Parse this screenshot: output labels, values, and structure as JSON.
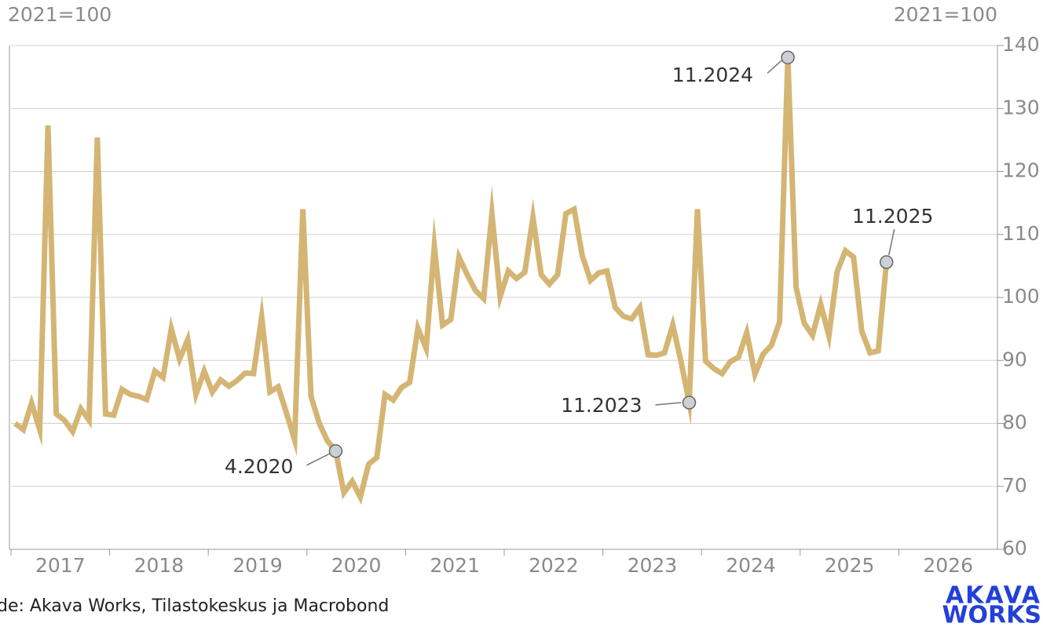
{
  "chart_data": {
    "type": "line",
    "y_label_left": "2021=100",
    "y_label_right": "2021=100",
    "source": "de: Akava Works, Tilastokeskus ja Macrobond",
    "logo": [
      "AKAVA",
      "WORKS"
    ],
    "x": [
      "1.2017",
      "2.2017",
      "3.2017",
      "4.2017",
      "5.2017",
      "6.2017",
      "7.2017",
      "8.2017",
      "9.2017",
      "10.2017",
      "11.2017",
      "12.2017",
      "1.2018",
      "2.2018",
      "3.2018",
      "4.2018",
      "5.2018",
      "6.2018",
      "7.2018",
      "8.2018",
      "9.2018",
      "10.2018",
      "11.2018",
      "12.2018",
      "1.2019",
      "2.2019",
      "3.2019",
      "4.2019",
      "5.2019",
      "6.2019",
      "7.2019",
      "8.2019",
      "9.2019",
      "10.2019",
      "11.2019",
      "12.2019",
      "1.2020",
      "2.2020",
      "3.2020",
      "4.2020",
      "5.2020",
      "6.2020",
      "7.2020",
      "8.2020",
      "9.2020",
      "10.2020",
      "11.2020",
      "12.2020",
      "1.2021",
      "2.2021",
      "3.2021",
      "4.2021",
      "5.2021",
      "6.2021",
      "7.2021",
      "8.2021",
      "9.2021",
      "10.2021",
      "11.2021",
      "12.2021",
      "1.2022",
      "2.2022",
      "3.2022",
      "4.2022",
      "5.2022",
      "6.2022",
      "7.2022",
      "8.2022",
      "9.2022",
      "10.2022",
      "11.2022",
      "12.2022",
      "1.2023",
      "2.2023",
      "3.2023",
      "4.2023",
      "5.2023",
      "6.2023",
      "7.2023",
      "8.2023",
      "9.2023",
      "10.2023",
      "11.2023",
      "12.2023",
      "1.2024",
      "2.2024",
      "3.2024",
      "4.2024",
      "5.2024",
      "6.2024",
      "7.2024",
      "8.2024",
      "9.2024",
      "10.2024",
      "11.2024",
      "12.2024",
      "1.2025",
      "2.2025",
      "3.2025",
      "4.2025",
      "5.2025",
      "6.2025",
      "7.2025",
      "8.2025",
      "9.2025",
      "10.2025",
      "11.2025"
    ],
    "series": [
      {
        "color": "#d4b574",
        "values": [
          80,
          79,
          83.2,
          79,
          127.3,
          81.5,
          80.5,
          78.7,
          82.3,
          80.5,
          125.4,
          81.5,
          81.3,
          85.4,
          84.6,
          84.3,
          83.8,
          88.3,
          87.3,
          95,
          90.2,
          93.3,
          84.6,
          88.3,
          85,
          86.9,
          85.9,
          86.8,
          88,
          87.9,
          96.9,
          85,
          85.8,
          81.7,
          77.4,
          114,
          84.3,
          80,
          77.2,
          75.6,
          69,
          70.8,
          68.3,
          73.5,
          74.6,
          84.6,
          83.7,
          85.7,
          86.5,
          95.1,
          91.9,
          108.1,
          95.6,
          96.5,
          106.4,
          103.6,
          101.1,
          99.8,
          113.3,
          100.1,
          104.2,
          103,
          104,
          112.7,
          103.6,
          102.1,
          103.6,
          113.3,
          114,
          106.6,
          102.7,
          103.9,
          104.2,
          98.4,
          97,
          96.6,
          98.4,
          90.9,
          90.8,
          91.2,
          95.6,
          89.9,
          83.3,
          114,
          89.9,
          88.7,
          87.9,
          89.8,
          90.5,
          94.4,
          87.8,
          91,
          92.4,
          96.1,
          138.1,
          101.6,
          95.9,
          94,
          98.9,
          93.9,
          104.1,
          107.4,
          106.4,
          94.6,
          91.2,
          91.5,
          105.6
        ]
      }
    ],
    "annotations": [
      "4.2020",
      "11.2023",
      "11.2024",
      "11.2025"
    ],
    "xlim": [
      2017,
      2027
    ],
    "xticks": [
      2017,
      2018,
      2019,
      2020,
      2021,
      2022,
      2023,
      2024,
      2025,
      2026
    ],
    "ylim": [
      60,
      140
    ],
    "yticks": [
      60,
      70,
      80,
      90,
      100,
      110,
      120,
      130,
      140
    ],
    "grid": true
  }
}
